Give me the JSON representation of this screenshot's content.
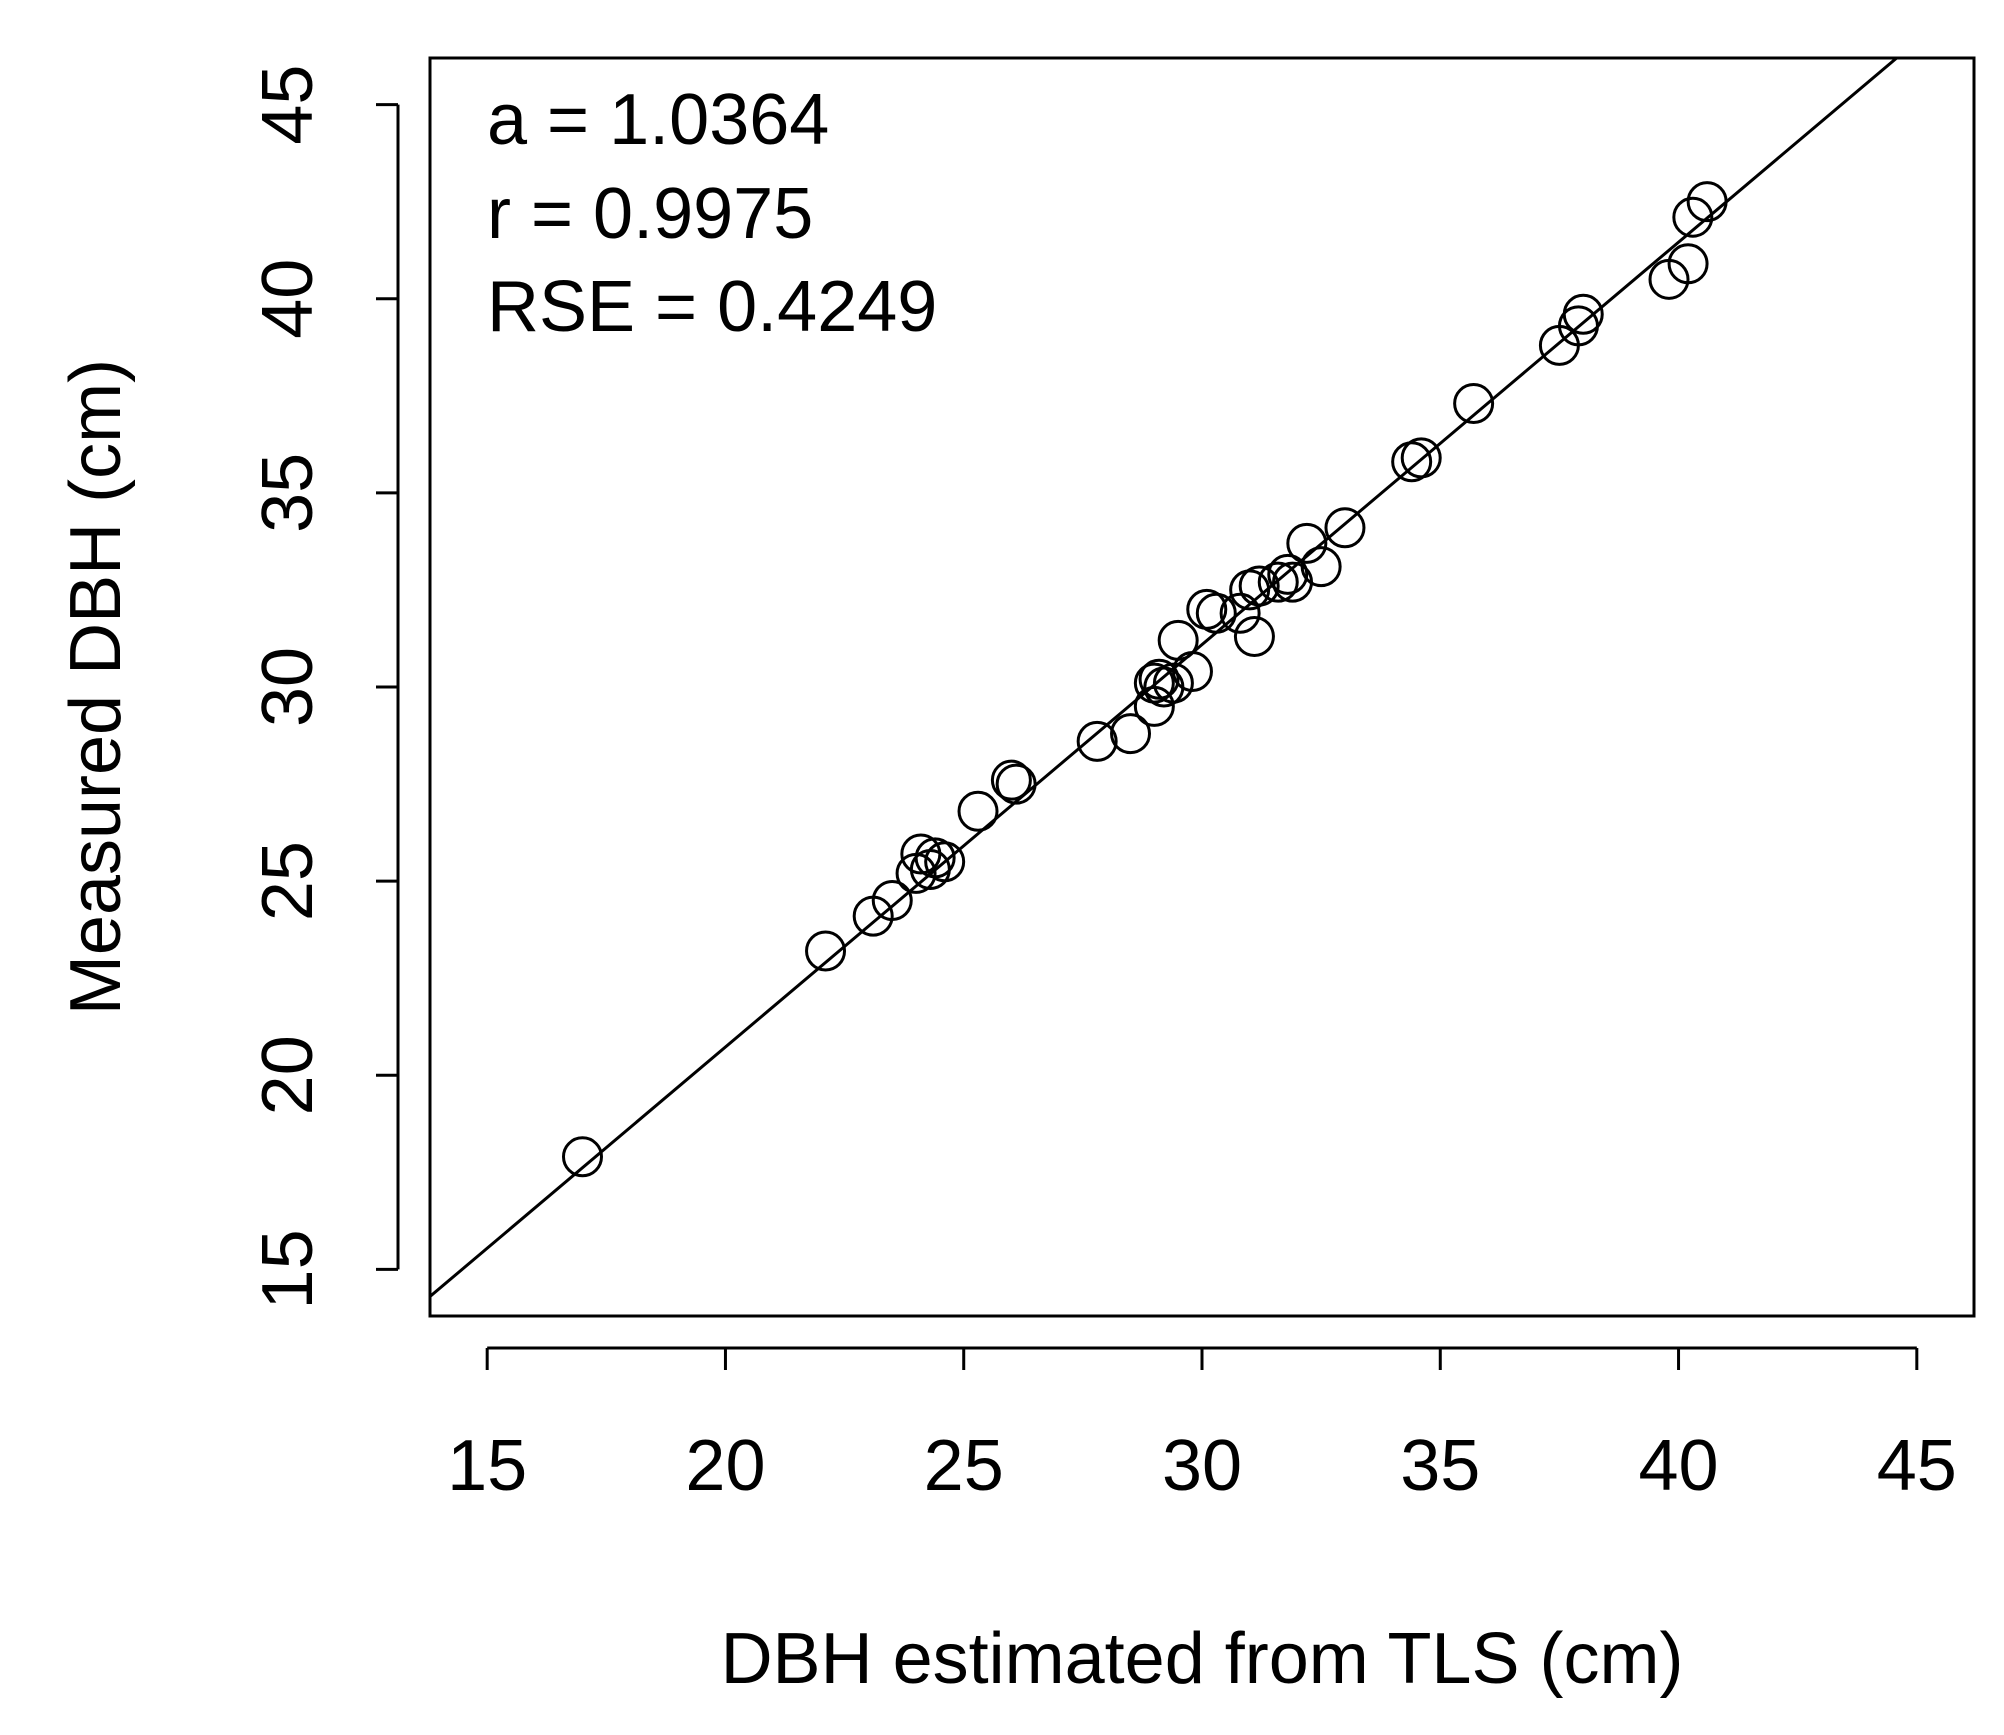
{
  "chart_data": {
    "type": "scatter",
    "title": "",
    "xlabel": "DBH estimated from TLS (cm)",
    "ylabel": "Measured DBH (cm)",
    "xlim": [
      13.8,
      46.2
    ],
    "ylim": [
      13.8,
      46.2
    ],
    "xticks": [
      15,
      20,
      25,
      30,
      35,
      40,
      45
    ],
    "yticks": [
      15,
      20,
      25,
      30,
      35,
      40,
      45
    ],
    "grid": false,
    "legend": "none",
    "annotations": [
      "a =  1.0364",
      "r =  0.9975",
      "RSE =  0.4249"
    ],
    "fit_line": {
      "slope": 1.0364,
      "intercept": 0
    },
    "points": [
      [
        17.0,
        17.9
      ],
      [
        22.1,
        23.2
      ],
      [
        23.1,
        24.1
      ],
      [
        23.5,
        24.5
      ],
      [
        24.0,
        25.2
      ],
      [
        24.1,
        25.7
      ],
      [
        24.3,
        25.3
      ],
      [
        24.4,
        25.6
      ],
      [
        24.6,
        25.5
      ],
      [
        25.3,
        26.8
      ],
      [
        26.0,
        27.6
      ],
      [
        26.1,
        27.5
      ],
      [
        27.8,
        28.6
      ],
      [
        28.5,
        28.8
      ],
      [
        29.0,
        29.5
      ],
      [
        29.0,
        30.1
      ],
      [
        29.1,
        30.2
      ],
      [
        29.2,
        30.0
      ],
      [
        29.4,
        30.1
      ],
      [
        29.5,
        31.2
      ],
      [
        29.8,
        30.4
      ],
      [
        30.1,
        32.0
      ],
      [
        30.3,
        31.9
      ],
      [
        30.8,
        31.9
      ],
      [
        31.0,
        32.5
      ],
      [
        31.1,
        31.3
      ],
      [
        31.2,
        32.6
      ],
      [
        31.6,
        32.7
      ],
      [
        31.8,
        32.9
      ],
      [
        31.9,
        32.7
      ],
      [
        32.2,
        33.7
      ],
      [
        32.5,
        33.1
      ],
      [
        33.0,
        34.1
      ],
      [
        34.4,
        35.8
      ],
      [
        34.6,
        35.9
      ],
      [
        35.7,
        37.3
      ],
      [
        37.5,
        38.8
      ],
      [
        37.9,
        39.3
      ],
      [
        38.0,
        39.6
      ],
      [
        39.8,
        40.5
      ],
      [
        40.2,
        40.9
      ],
      [
        40.3,
        42.1
      ],
      [
        40.6,
        42.5
      ]
    ]
  }
}
